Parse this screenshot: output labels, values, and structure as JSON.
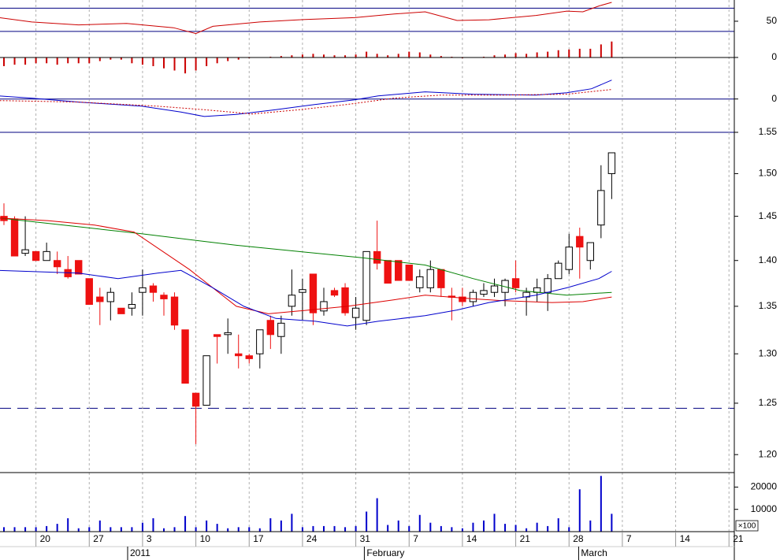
{
  "chart_data": [
    {
      "type": "line",
      "ylim": [
        -29.4,
        79.3
      ],
      "yticks": [
        50,
        0
      ],
      "hlines": [
        {
          "value": 68,
          "color": "#000080",
          "style": "solid"
        },
        {
          "value": 36,
          "color": "#000080",
          "style": "solid"
        }
      ],
      "series": [
        {
          "color": "#cc0000",
          "style": "solid",
          "x": [
            -0.4,
            2.6,
            7,
            11.5,
            15.9,
            18,
            19.6,
            24,
            27.7,
            32.9,
            36.6,
            39.5,
            42.5,
            45.5,
            49.9,
            52.8,
            54.3,
            55.8,
            57
          ],
          "values": [
            55,
            49,
            45,
            47,
            41,
            33,
            43,
            49,
            52,
            55,
            60,
            63,
            51,
            52,
            58,
            64,
            63,
            71,
            76
          ]
        }
      ]
    },
    {
      "type": "bar",
      "ylim": [
        -29.4,
        79.3
      ],
      "color": "#cc0000",
      "x": [
        0,
        1,
        2,
        3,
        4,
        5,
        6,
        7,
        8,
        9,
        10,
        11,
        12,
        13,
        14,
        15,
        16,
        17,
        18,
        19,
        20,
        21,
        22,
        23,
        24,
        25,
        26,
        27,
        28,
        29,
        30,
        31,
        32,
        33,
        34,
        35,
        36,
        37,
        38,
        39,
        40,
        41,
        42,
        43,
        44,
        45,
        46,
        47,
        48,
        49,
        50,
        51,
        52,
        53,
        54,
        55,
        56,
        57
      ],
      "values": [
        -12,
        -10,
        -10,
        -8,
        -8,
        -10,
        -8,
        -8,
        -8,
        -5,
        -3,
        -3,
        -8,
        -10,
        -12,
        -15,
        -18,
        -22,
        -18,
        -12,
        -8,
        -5,
        -3,
        -1,
        0,
        1,
        2,
        3,
        4,
        5,
        4,
        3,
        3,
        4,
        8,
        5,
        3,
        5,
        8,
        7,
        4,
        2,
        1,
        -1,
        0,
        1,
        3,
        4,
        6,
        5,
        7,
        8,
        10,
        11,
        12,
        12,
        18,
        22
      ]
    },
    {
      "type": "line",
      "ylim": [
        -0.028,
        0.017
      ],
      "yticks": [
        0
      ],
      "hlines": [
        {
          "value": 0,
          "color": "#000080",
          "style": "solid"
        }
      ],
      "series": [
        {
          "color": "#0000cc",
          "style": "solid",
          "x": [
            -0.4,
            2.6,
            7,
            12.9,
            16.6,
            18.8,
            21.8,
            25.5,
            29.2,
            32.9,
            35.1,
            39.5,
            44,
            49.9,
            52.8,
            55.1,
            57
          ],
          "values": [
            0.0026,
            0.0007,
            -0.0026,
            -0.006,
            -0.011,
            -0.0147,
            -0.013,
            -0.009,
            -0.0046,
            -0.0007,
            0.0026,
            0.006,
            0.004,
            0.0033,
            0.0053,
            0.0086,
            0.0159
          ]
        },
        {
          "color": "#cc0000",
          "style": "dotted",
          "x": [
            -0.4,
            7,
            14.4,
            18.8,
            23.3,
            27.7,
            32.2,
            36.6,
            41,
            46.9,
            52.8,
            57
          ],
          "values": [
            -0.0013,
            -0.0026,
            -0.006,
            -0.009,
            -0.0126,
            -0.009,
            -0.0046,
            0.0007,
            0.0033,
            0.0033,
            0.004,
            0.008
          ]
        }
      ]
    },
    {
      "type": "candlestick",
      "log_scale": true,
      "ylim": [
        1.183,
        1.55
      ],
      "yticks": [
        1.55,
        {
          "value": 1.5,
          "label": "1.50"
        },
        1.45,
        {
          "value": 1.4,
          "label": "1.40"
        },
        1.35,
        {
          "value": 1.3,
          "label": "1.30"
        },
        1.25,
        {
          "value": 1.2,
          "label": "1.20"
        }
      ],
      "up_color": "#ffffff",
      "down_color": "#ee1111",
      "hlines": [
        {
          "value": 1.55,
          "color": "#000080",
          "style": "solid"
        },
        {
          "value": 1.245,
          "color": "#000080",
          "style": "dashed"
        }
      ],
      "x": [
        0,
        1,
        2,
        3,
        4,
        5,
        6,
        7,
        8,
        9,
        10,
        11,
        12,
        13,
        14,
        15,
        16,
        17,
        18,
        19,
        20,
        21,
        22,
        23,
        24,
        25,
        26,
        27,
        28,
        29,
        30,
        31,
        32,
        33,
        34,
        35,
        36,
        37,
        38,
        39,
        40,
        41,
        42,
        43,
        44,
        45,
        46,
        47,
        48,
        49,
        50,
        51,
        52,
        53,
        54,
        55,
        56,
        57
      ],
      "open": [
        1.45,
        1.447,
        1.408,
        1.41,
        1.4,
        1.4,
        1.39,
        1.4,
        1.38,
        1.36,
        1.355,
        1.348,
        1.348,
        1.365,
        1.372,
        1.362,
        1.36,
        1.325,
        1.26,
        1.248,
        1.32,
        1.32,
        1.3,
        1.298,
        1.3,
        1.335,
        1.318,
        1.35,
        1.365,
        1.385,
        1.345,
        1.367,
        1.37,
        1.338,
        1.335,
        1.41,
        1.4,
        1.4,
        1.395,
        1.37,
        1.37,
        1.39,
        1.361,
        1.36,
        1.355,
        1.363,
        1.365,
        1.365,
        1.38,
        1.36,
        1.365,
        1.365,
        1.38,
        1.39,
        1.427,
        1.4,
        1.44,
        1.5
      ],
      "high": [
        1.465,
        1.45,
        1.45,
        1.41,
        1.42,
        1.41,
        1.405,
        1.4,
        1.38,
        1.37,
        1.37,
        1.348,
        1.365,
        1.39,
        1.375,
        1.365,
        1.365,
        1.325,
        1.26,
        1.298,
        1.32,
        1.337,
        1.32,
        1.3,
        1.325,
        1.34,
        1.34,
        1.39,
        1.38,
        1.385,
        1.37,
        1.37,
        1.375,
        1.36,
        1.41,
        1.445,
        1.4,
        1.4,
        1.395,
        1.39,
        1.4,
        1.39,
        1.37,
        1.37,
        1.368,
        1.375,
        1.38,
        1.38,
        1.4,
        1.37,
        1.38,
        1.385,
        1.4,
        1.43,
        1.437,
        1.42,
        1.51,
        1.525
      ],
      "low": [
        1.44,
        1.405,
        1.405,
        1.4,
        1.4,
        1.385,
        1.38,
        1.385,
        1.352,
        1.33,
        1.335,
        1.342,
        1.34,
        1.34,
        1.355,
        1.34,
        1.325,
        1.27,
        1.21,
        1.248,
        1.29,
        1.3,
        1.285,
        1.29,
        1.285,
        1.305,
        1.3,
        1.34,
        1.335,
        1.33,
        1.34,
        1.36,
        1.34,
        1.325,
        1.33,
        1.39,
        1.375,
        1.378,
        1.378,
        1.365,
        1.365,
        1.36,
        1.335,
        1.35,
        1.35,
        1.36,
        1.36,
        1.35,
        1.365,
        1.34,
        1.355,
        1.345,
        1.38,
        1.385,
        1.38,
        1.39,
        1.425,
        1.47
      ],
      "close": [
        1.445,
        1.405,
        1.412,
        1.4,
        1.41,
        1.393,
        1.382,
        1.385,
        1.352,
        1.355,
        1.365,
        1.342,
        1.352,
        1.37,
        1.365,
        1.358,
        1.33,
        1.27,
        1.247,
        1.298,
        1.318,
        1.322,
        1.298,
        1.295,
        1.325,
        1.32,
        1.332,
        1.362,
        1.368,
        1.343,
        1.355,
        1.362,
        1.343,
        1.348,
        1.41,
        1.397,
        1.375,
        1.378,
        1.378,
        1.382,
        1.39,
        1.37,
        1.36,
        1.355,
        1.365,
        1.367,
        1.372,
        1.378,
        1.37,
        1.365,
        1.37,
        1.38,
        1.397,
        1.415,
        1.415,
        1.42,
        1.48,
        1.525
      ],
      "series": [
        {
          "color": "#008000",
          "style": "solid",
          "x": [
            -0.4,
            7,
            12.9,
            21.8,
            27.7,
            33.6,
            39.5,
            44,
            48.4,
            52.8,
            57
          ],
          "values": [
            1.448,
            1.438,
            1.43,
            1.417,
            1.41,
            1.403,
            1.395,
            1.38,
            1.367,
            1.362,
            1.365
          ]
        },
        {
          "color": "#dd0000",
          "style": "solid",
          "x": [
            -0.4,
            4.1,
            8.5,
            12.2,
            17.4,
            21.8,
            24.8,
            27.7,
            32.2,
            36.6,
            39.5,
            44,
            46.9,
            51.4,
            54.3,
            57
          ],
          "values": [
            1.448,
            1.445,
            1.44,
            1.432,
            1.39,
            1.35,
            1.342,
            1.345,
            1.35,
            1.357,
            1.362,
            1.358,
            1.356,
            1.354,
            1.355,
            1.36
          ]
        },
        {
          "color": "#0000cc",
          "style": "solid",
          "x": [
            -0.4,
            7,
            10.7,
            14.4,
            16.6,
            19.6,
            22.5,
            25.5,
            29.2,
            32.2,
            35.1,
            39.5,
            42.5,
            45.5,
            49.9,
            52.8,
            55.8,
            57
          ],
          "values": [
            1.389,
            1.386,
            1.38,
            1.386,
            1.389,
            1.37,
            1.35,
            1.337,
            1.334,
            1.329,
            1.334,
            1.34,
            1.346,
            1.354,
            1.362,
            1.37,
            1.38,
            1.388
          ]
        }
      ]
    },
    {
      "type": "bar",
      "ylim": [
        0,
        26500
      ],
      "yticks": [
        10000,
        20000
      ],
      "color": "#0000cc",
      "annotation": "×100",
      "x": [
        0,
        1,
        2,
        3,
        4,
        5,
        6,
        7,
        8,
        9,
        10,
        11,
        12,
        13,
        14,
        15,
        16,
        17,
        18,
        19,
        20,
        21,
        22,
        23,
        24,
        25,
        26,
        27,
        28,
        29,
        30,
        31,
        32,
        33,
        34,
        35,
        36,
        37,
        38,
        39,
        40,
        41,
        42,
        43,
        44,
        45,
        46,
        47,
        48,
        49,
        50,
        51,
        52,
        53,
        54,
        55,
        56,
        57
      ],
      "values": [
        2000,
        2000,
        2000,
        2000,
        2500,
        3500,
        6000,
        1500,
        2000,
        5000,
        2000,
        2000,
        2000,
        4000,
        6000,
        1500,
        2000,
        7000,
        2000,
        5000,
        3500,
        1500,
        2000,
        2000,
        1500,
        6000,
        5000,
        8000,
        2000,
        2500,
        2500,
        2500,
        2000,
        2500,
        9000,
        15000,
        3000,
        5000,
        2500,
        7500,
        4000,
        2500,
        2000,
        1500,
        4000,
        5000,
        8000,
        3500,
        3000,
        1500,
        4000,
        2500,
        6000,
        2000,
        19000,
        5000,
        25000,
        8000
      ],
      "xlim": [
        -0.37,
        68.5
      ],
      "xticks": [
        {
          "value": 3,
          "label": "20"
        },
        {
          "value": 8,
          "label": "27"
        },
        {
          "value": 13,
          "label": "3"
        },
        {
          "value": 18,
          "label": "10"
        },
        {
          "value": 23,
          "label": "17"
        },
        {
          "value": 28,
          "label": "24"
        },
        {
          "value": 33,
          "label": "31"
        },
        {
          "value": 38,
          "label": "7"
        },
        {
          "value": 43,
          "label": "14"
        },
        {
          "value": 48,
          "label": "21"
        },
        {
          "value": 53,
          "label": "28"
        },
        {
          "value": 58,
          "label": "7"
        },
        {
          "value": 63,
          "label": "14"
        },
        {
          "value": 68,
          "label": "21"
        }
      ],
      "month_ticks": [
        {
          "value": 11.6,
          "label": "2011"
        },
        {
          "value": 33.8,
          "label": "February"
        },
        {
          "value": 53.9,
          "label": "March"
        }
      ],
      "grid": true
    }
  ]
}
